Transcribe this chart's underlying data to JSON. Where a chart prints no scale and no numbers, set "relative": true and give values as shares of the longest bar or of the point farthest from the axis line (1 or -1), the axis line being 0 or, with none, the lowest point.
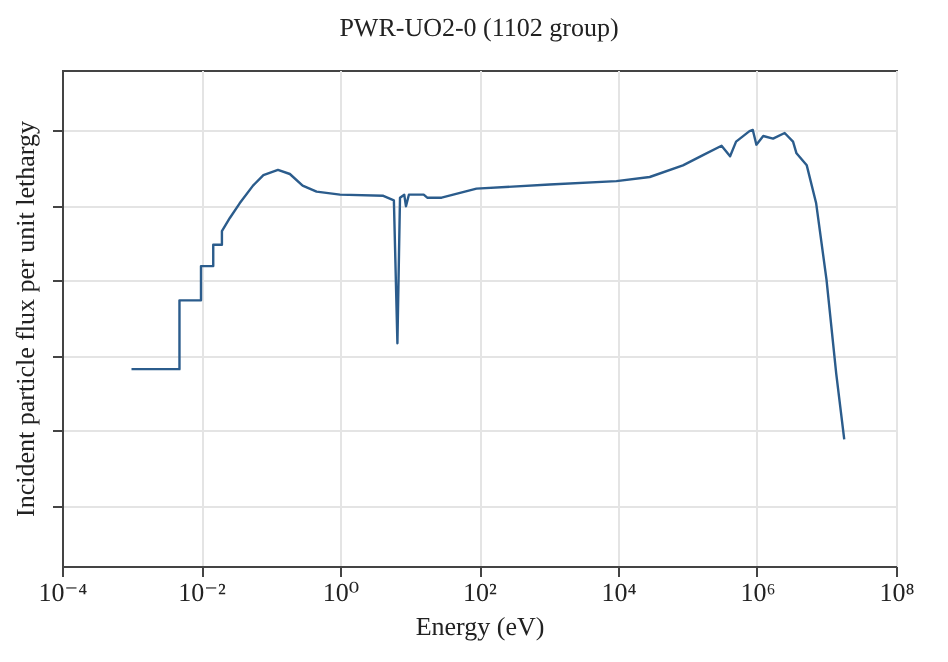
{
  "chart_data": {
    "type": "line",
    "title": "PWR-UO2-0 (1102 group)",
    "xlabel": "Energy (eV)",
    "ylabel": "Incident particle flux per unit lethargy",
    "relative": true,
    "log": "x",
    "grid": true,
    "xlim": [
      0.0001,
      100000000
    ],
    "xticks": [
      {
        "value": 0.0001,
        "label": "10⁻⁴"
      },
      {
        "value": 0.01,
        "label": "10⁻²"
      },
      {
        "value": 1,
        "label": "10⁰"
      },
      {
        "value": 100,
        "label": "10²"
      },
      {
        "value": 10000,
        "label": "10⁴"
      },
      {
        "value": 1000000,
        "label": "10⁶"
      },
      {
        "value": 100000000,
        "label": "10⁸"
      }
    ],
    "series": [
      {
        "color": "#2b5c8c",
        "x": [
          0.001,
          0.0049,
          0.0049,
          0.01,
          0.01,
          0.015,
          0.015,
          0.02,
          0.02,
          0.026,
          0.036,
          0.056,
          0.079,
          0.128,
          0.19,
          0.29,
          0.46,
          1.0,
          4.2,
          5.96,
          6.7,
          7.3,
          8.4,
          8.9,
          9.8,
          16,
          18,
          29,
          92,
          1040,
          9500,
          28600,
          86000,
          167000,
          309000,
          410000,
          500000,
          780000,
          870000,
          980000,
          1230000,
          1700000,
          2500000,
          3300000,
          3700000,
          5200000,
          7100000,
          10000000,
          13800000,
          18000000
        ],
        "values": [
          0.364,
          0.364,
          0.547,
          0.547,
          0.638,
          0.638,
          0.695,
          0.695,
          0.731,
          0.766,
          0.805,
          0.852,
          0.88,
          0.894,
          0.883,
          0.852,
          0.836,
          0.828,
          0.825,
          0.813,
          0.433,
          0.82,
          0.828,
          0.797,
          0.828,
          0.828,
          0.82,
          0.82,
          0.844,
          0.855,
          0.864,
          0.875,
          0.906,
          0.933,
          0.958,
          0.93,
          0.969,
          0.997,
          1.0,
          0.961,
          0.984,
          0.977,
          0.992,
          0.969,
          0.938,
          0.906,
          0.805,
          0.602,
          0.352,
          0.177
        ]
      }
    ]
  }
}
